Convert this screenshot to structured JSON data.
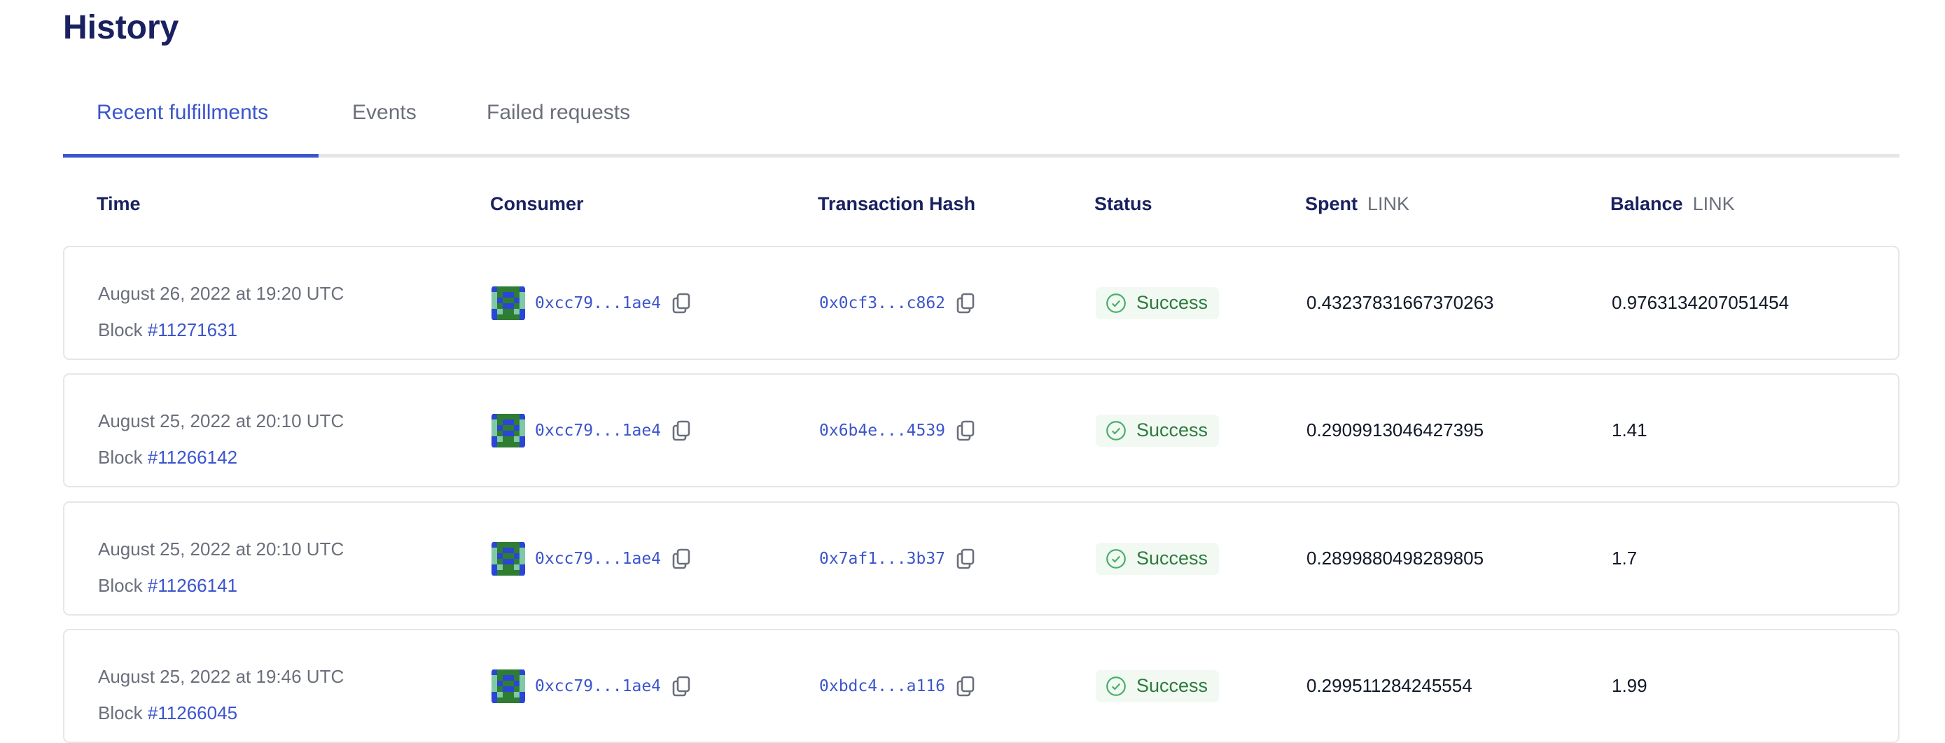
{
  "page": {
    "title": "History"
  },
  "tabs": [
    {
      "label": "Recent fulfillments",
      "active": true
    },
    {
      "label": "Events",
      "active": false
    },
    {
      "label": "Failed requests",
      "active": false
    }
  ],
  "columns": {
    "time": "Time",
    "consumer": "Consumer",
    "tx_hash": "Transaction Hash",
    "status": "Status",
    "spent": "Spent",
    "spent_unit": "LINK",
    "balance": "Balance",
    "balance_unit": "LINK"
  },
  "colors": {
    "accent": "#3b55cc",
    "heading": "#1a2160",
    "success": "#2f7a3e",
    "success_bg": "#f1f9f2"
  },
  "rows": [
    {
      "time": "August 26, 2022 at 19:20 UTC",
      "block_label": "Block",
      "block": "#11271631",
      "consumer": "0xcc79...1ae4",
      "tx_hash": "0x0cf3...c862",
      "status": "Success",
      "spent": "0.43237831667370263",
      "balance": "0.9763134207051454"
    },
    {
      "time": "August 25, 2022 at 20:10 UTC",
      "block_label": "Block",
      "block": "#11266142",
      "consumer": "0xcc79...1ae4",
      "tx_hash": "0x6b4e...4539",
      "status": "Success",
      "spent": "0.2909913046427395",
      "balance": "1.41"
    },
    {
      "time": "August 25, 2022 at 20:10 UTC",
      "block_label": "Block",
      "block": "#11266141",
      "consumer": "0xcc79...1ae4",
      "tx_hash": "0x7af1...3b37",
      "status": "Success",
      "spent": "0.2899880498289805",
      "balance": "1.7"
    },
    {
      "time": "August 25, 2022 at 19:46 UTC",
      "block_label": "Block",
      "block": "#11266045",
      "consumer": "0xcc79...1ae4",
      "tx_hash": "0xbdc4...a116",
      "status": "Success",
      "spent": "0.299511284245554",
      "balance": "1.99"
    }
  ]
}
